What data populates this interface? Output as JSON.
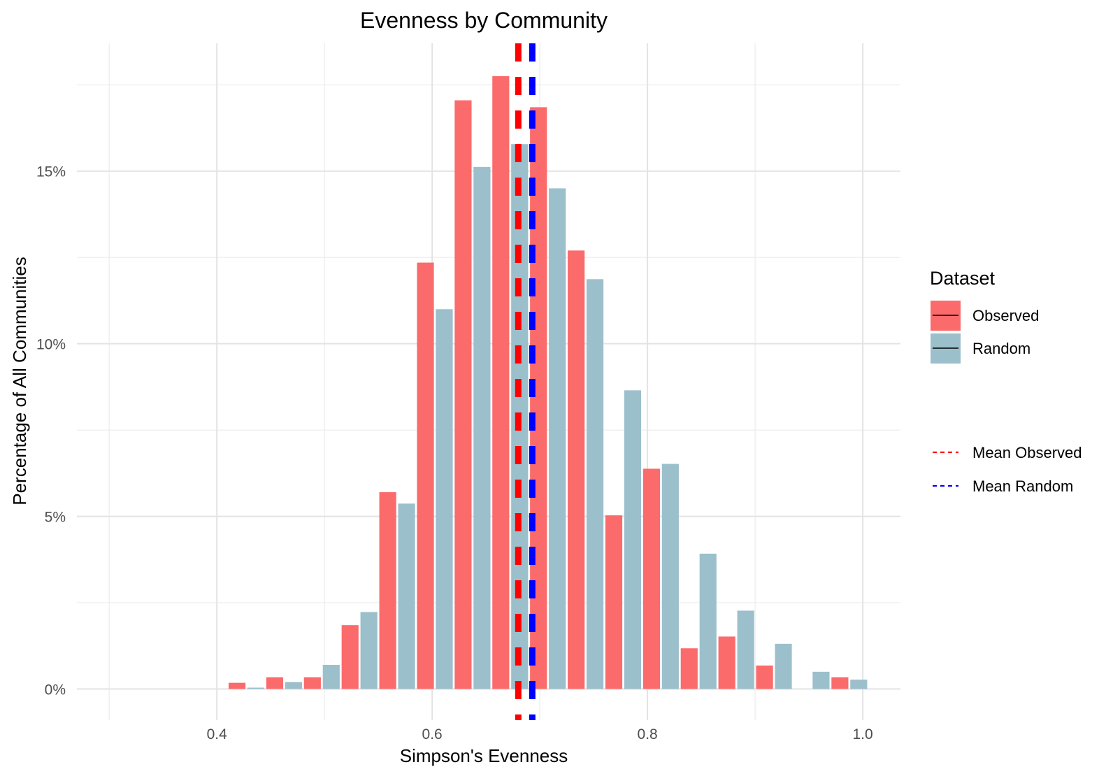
{
  "chart_data": {
    "type": "bar",
    "title": "Evenness by Community",
    "xlabel": "Simpson's Evenness",
    "ylabel": "Percentage of All Communities",
    "xlim": [
      0.27,
      1.035
    ],
    "ylim": [
      -0.9,
      18.7
    ],
    "x_ticks": [
      0.4,
      0.6,
      0.8,
      1.0
    ],
    "x_tick_labels": [
      "0.4",
      "0.6",
      "0.8",
      "1.0"
    ],
    "y_ticks": [
      0,
      5,
      10,
      15
    ],
    "y_tick_labels": [
      "0%",
      "5%",
      "10%",
      "15%"
    ],
    "grid": true,
    "bin_width": 0.035,
    "x": [
      0.4275,
      0.4625,
      0.4975,
      0.5325,
      0.5675,
      0.6025,
      0.6375,
      0.6725,
      0.7075,
      0.7425,
      0.7775,
      0.8125,
      0.8475,
      0.8825,
      0.9175,
      0.9525,
      0.9875
    ],
    "series": [
      {
        "name": "Observed",
        "color": "#fb6b6b",
        "values": [
          0.18,
          0.34,
          0.34,
          1.85,
          5.7,
          12.35,
          17.05,
          17.75,
          16.85,
          12.7,
          5.03,
          6.38,
          1.18,
          1.52,
          0.68,
          0.0,
          0.34
        ]
      },
      {
        "name": "Random",
        "color": "#9cbfcc",
        "values": [
          0.04,
          0.2,
          0.7,
          2.23,
          5.37,
          11.0,
          15.12,
          15.78,
          14.5,
          11.87,
          8.65,
          6.52,
          3.92,
          2.27,
          1.31,
          0.5,
          0.27
        ]
      }
    ],
    "reference_lines": [
      {
        "name": "Mean Observed",
        "x": 0.68,
        "color": "#ff0000",
        "style": "dashed"
      },
      {
        "name": "Mean Random",
        "x": 0.693,
        "color": "#0000ff",
        "style": "dashed"
      }
    ],
    "legend": {
      "title": "Dataset",
      "placement": "right",
      "fill_items": [
        "Observed",
        "Random"
      ],
      "line_items": [
        "Mean Observed",
        "Mean Random"
      ]
    }
  }
}
